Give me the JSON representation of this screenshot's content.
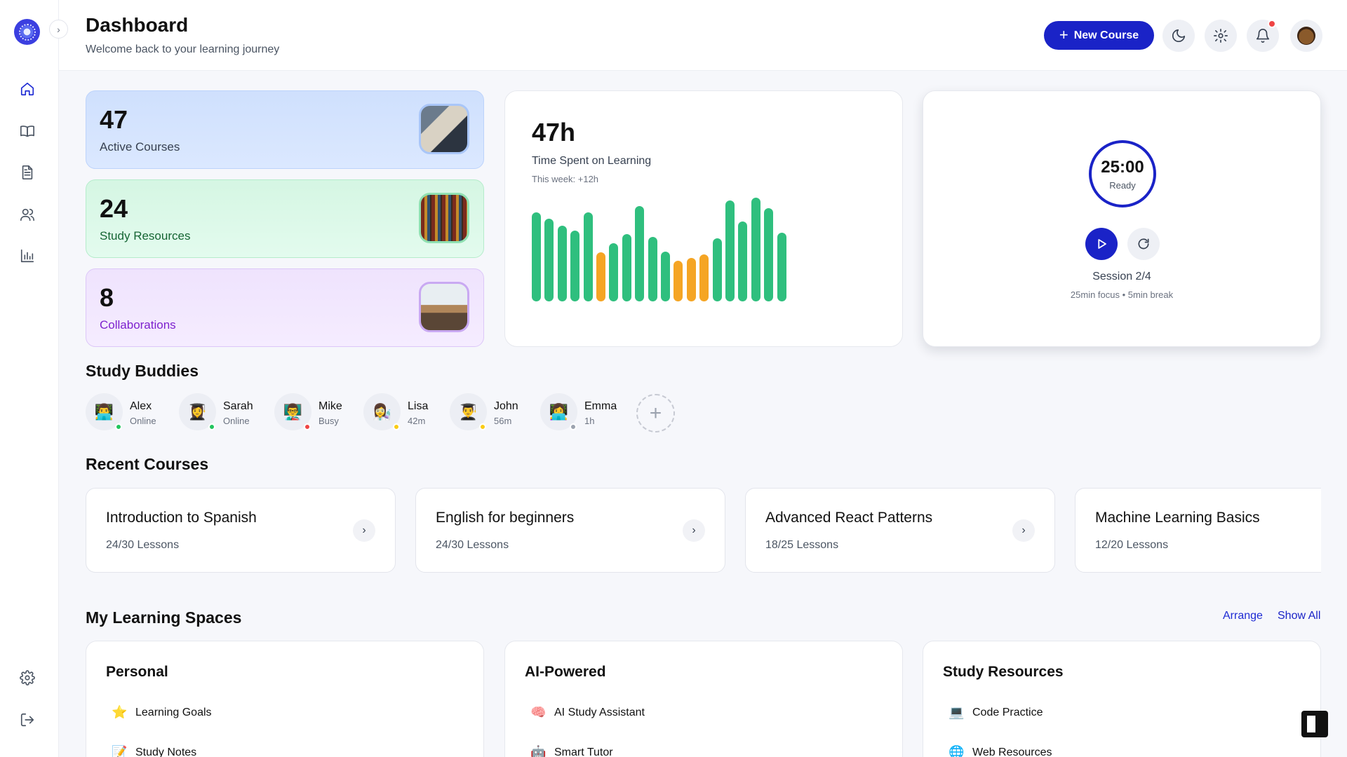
{
  "header": {
    "title": "Dashboard",
    "subtitle": "Welcome back to your learning journey",
    "new_course_label": "New Course"
  },
  "sidebar": {
    "nav": [
      {
        "icon": "home-icon",
        "active": true
      },
      {
        "icon": "book-icon"
      },
      {
        "icon": "document-icon"
      },
      {
        "icon": "users-icon"
      },
      {
        "icon": "chart-icon"
      }
    ],
    "bottom": [
      {
        "icon": "gear-icon"
      },
      {
        "icon": "logout-icon"
      }
    ]
  },
  "stats": [
    {
      "value": "47",
      "label": "Active Courses"
    },
    {
      "value": "24",
      "label": "Study Resources"
    },
    {
      "value": "8",
      "label": "Collaborations"
    }
  ],
  "time_spent": {
    "value": "47h",
    "label": "Time Spent on Learning",
    "week": "This week: +12h",
    "bars": [
      {
        "level": 0.86,
        "color": "#2fbf7e"
      },
      {
        "level": 0.8,
        "color": "#2fbf7e"
      },
      {
        "level": 0.73,
        "color": "#2fbf7e"
      },
      {
        "level": 0.68,
        "color": "#2fbf7e"
      },
      {
        "level": 0.86,
        "color": "#2fbf7e"
      },
      {
        "level": 0.47,
        "color": "#f5a524"
      },
      {
        "level": 0.56,
        "color": "#2fbf7e"
      },
      {
        "level": 0.65,
        "color": "#2fbf7e"
      },
      {
        "level": 0.92,
        "color": "#2fbf7e"
      },
      {
        "level": 0.62,
        "color": "#2fbf7e"
      },
      {
        "level": 0.48,
        "color": "#2fbf7e"
      },
      {
        "level": 0.39,
        "color": "#f5a524"
      },
      {
        "level": 0.42,
        "color": "#f5a524"
      },
      {
        "level": 0.45,
        "color": "#f5a524"
      },
      {
        "level": 0.61,
        "color": "#2fbf7e"
      },
      {
        "level": 0.97,
        "color": "#2fbf7e"
      },
      {
        "level": 0.77,
        "color": "#2fbf7e"
      },
      {
        "level": 1.0,
        "color": "#2fbf7e"
      },
      {
        "level": 0.9,
        "color": "#2fbf7e"
      },
      {
        "level": 0.66,
        "color": "#2fbf7e"
      }
    ]
  },
  "timer": {
    "time": "25:00",
    "status": "Ready",
    "session": "Session 2/4",
    "detail": "25min focus • 5min break"
  },
  "sections": {
    "buddies": "Study Buddies",
    "courses": "Recent Courses",
    "spaces": "My Learning Spaces",
    "arrange": "Arrange",
    "show_all": "Show All"
  },
  "buddies": [
    {
      "name": "Alex",
      "status": "Online",
      "emoji": "👨‍💻",
      "dot": "#22c55e"
    },
    {
      "name": "Sarah",
      "status": "Online",
      "emoji": "👩‍🎓",
      "dot": "#22c55e"
    },
    {
      "name": "Mike",
      "status": "Busy",
      "emoji": "👨‍🏫",
      "dot": "#ef4444"
    },
    {
      "name": "Lisa",
      "status": "42m",
      "emoji": "👩‍🔬",
      "dot": "#facc15"
    },
    {
      "name": "John",
      "status": "56m",
      "emoji": "👨‍🎓",
      "dot": "#facc15"
    },
    {
      "name": "Emma",
      "status": "1h",
      "emoji": "👩‍💻",
      "dot": "#9ca3af"
    }
  ],
  "courses": [
    {
      "title": "Introduction to Spanish",
      "lessons": "24/30 Lessons"
    },
    {
      "title": "English for beginners",
      "lessons": "24/30 Lessons"
    },
    {
      "title": "Advanced React Patterns",
      "lessons": "18/25 Lessons"
    },
    {
      "title": "Machine Learning Basics",
      "lessons": "12/20 Lessons"
    }
  ],
  "spaces": [
    {
      "title": "Personal",
      "items": [
        {
          "emoji": "⭐",
          "label": "Learning Goals"
        },
        {
          "emoji": "📝",
          "label": "Study Notes"
        }
      ]
    },
    {
      "title": "AI-Powered",
      "items": [
        {
          "emoji": "🧠",
          "label": "AI Study Assistant"
        },
        {
          "emoji": "🤖",
          "label": "Smart Tutor"
        }
      ]
    },
    {
      "title": "Study Resources",
      "items": [
        {
          "emoji": "💻",
          "label": "Code Practice"
        },
        {
          "emoji": "🌐",
          "label": "Web Resources"
        }
      ]
    }
  ]
}
